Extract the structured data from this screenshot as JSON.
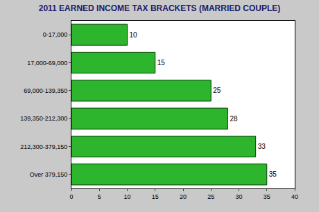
{
  "chart_data": {
    "type": "bar",
    "title": "2011 EARNED INCOME TAX BRACKETS (MARRIED COUPLE)",
    "orientation": "horizontal",
    "categories": [
      "0-17,000",
      "17,000-69,000",
      "69,000-139,350",
      "139,350-212,300",
      "212,300-379,150",
      "Over 379,150"
    ],
    "values": [
      10,
      15,
      25,
      28,
      33,
      35
    ],
    "color": "#2db52d",
    "xlim": [
      0,
      40
    ],
    "xticks": [
      0,
      5,
      10,
      15,
      20,
      25,
      30,
      35,
      40
    ],
    "data_labels": true,
    "grid": false
  }
}
